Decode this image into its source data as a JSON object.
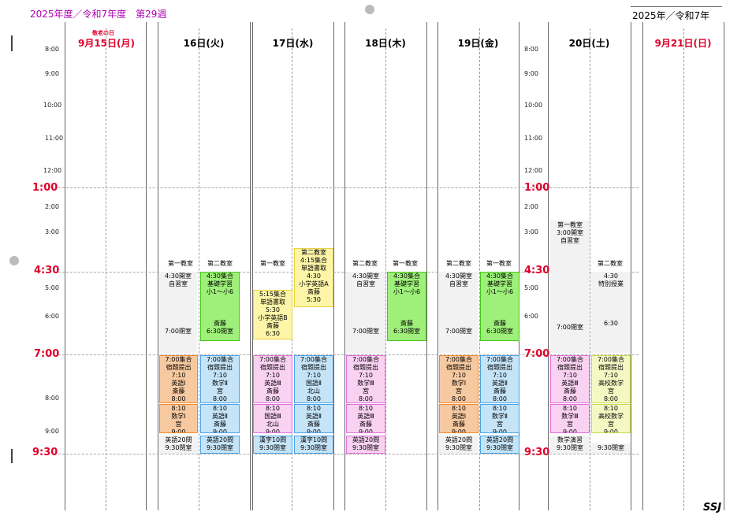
{
  "header": {
    "left": "2025年度／令和7年度　第29週",
    "right": "2025年／令和7年",
    "holiday": "敬老の日",
    "footer": "SSJ"
  },
  "colors": {
    "orange": "#f7c9a0",
    "blue": "#c6e4f8",
    "pink": "#f9d2f2",
    "green": "#9ef07a",
    "yellow": "#fdf5a8",
    "lightyellow": "#f4f9c4",
    "gray": "#f2f2f2",
    "red": "#e0002a"
  },
  "time_labels": [
    "8:00",
    "9:00",
    "10:00",
    "11:00",
    "12:00",
    "2:00",
    "3:00",
    "5:00",
    "6:00",
    "8:00",
    "9:00"
  ],
  "major_times": [
    "1:00",
    "4:30",
    "7:00",
    "9:30"
  ],
  "days": [
    {
      "label": "9月15日(月)",
      "red": true
    },
    {
      "label": "16日(火)"
    },
    {
      "label": "17日(水)"
    },
    {
      "label": "18日(木)"
    },
    {
      "label": "19日(金)"
    },
    {
      "label": "20日(土)"
    },
    {
      "label": "9月21日(日)",
      "red": true
    }
  ],
  "caps": [
    {
      "text": "第一教室"
    },
    {
      "text": "第二教室"
    },
    {
      "text": "第一教室"
    },
    {
      "text": "第二教室"
    },
    {
      "text": "第一教室"
    },
    {
      "text": "第二教室"
    },
    {
      "text": "第一教室"
    },
    {
      "text": "第二教室"
    },
    {
      "text": "第二教室"
    }
  ],
  "blocks": [
    {
      "c": "gray",
      "lines": [
        "4:30開室",
        "自習室",
        "",
        "",
        "",
        "",
        "",
        "7:00閉室"
      ]
    },
    {
      "c": "green",
      "lines": [
        "4:30集合",
        "基礎学習",
        "小1～小6",
        "",
        "",
        "",
        "斎藤",
        "6:30閉室"
      ]
    },
    {
      "c": "orange",
      "lines": [
        "7:00集合",
        "宿題提出",
        "7:10",
        "英語Ⅰ",
        "斎藤",
        "8:00"
      ]
    },
    {
      "c": "orange",
      "lines": [
        "8:10",
        "数学Ⅰ",
        "宮",
        "9:00"
      ]
    },
    {
      "c": "gray",
      "lines": [
        "英語20問",
        "9:30閉室"
      ]
    },
    {
      "c": "blue",
      "lines": [
        "7:00集合",
        "宿題提出",
        "7:10",
        "数学Ⅱ",
        "宮",
        "8:00"
      ]
    },
    {
      "c": "blue",
      "lines": [
        "8:10",
        "英語Ⅱ",
        "斎藤",
        "9:00"
      ]
    },
    {
      "c": "blue",
      "lines": [
        "英語20問",
        "9:30閉室"
      ]
    },
    {
      "c": "yellow",
      "lines": [
        "5:15集合",
        "単語書取",
        "5:30",
        "小学英語B",
        "斎藤",
        "6:30"
      ]
    },
    {
      "c": "yellow",
      "lines": [
        "第二教室",
        "4:15集合",
        "単語書取",
        "4:30",
        "小学英語A",
        "斎藤",
        "5:30"
      ]
    },
    {
      "c": "pink",
      "lines": [
        "7:00集合",
        "宿題提出",
        "7:10",
        "英語Ⅲ",
        "斎藤",
        "8:00"
      ]
    },
    {
      "c": "pink",
      "lines": [
        "8:10",
        "国語Ⅲ",
        "北山",
        "9:00"
      ]
    },
    {
      "c": "blue",
      "lines": [
        "漢字10問",
        "9:30閉室"
      ]
    },
    {
      "c": "blue",
      "lines": [
        "7:00集合",
        "宿題提出",
        "7:10",
        "国語Ⅱ",
        "北山",
        "8:00"
      ]
    },
    {
      "c": "blue",
      "lines": [
        "8:10",
        "英語Ⅱ",
        "斎藤",
        "9:00"
      ]
    },
    {
      "c": "blue",
      "lines": [
        "漢字10問",
        "9:30閉室"
      ]
    },
    {
      "c": "gray",
      "lines": [
        "4:30開室",
        "自習室",
        "",
        "",
        "",
        "",
        "",
        "7:00閉室"
      ]
    },
    {
      "c": "green",
      "lines": [
        "4:30集合",
        "基礎学習",
        "小1～小6",
        "",
        "",
        "",
        "斎藤",
        "6:30閉室"
      ]
    },
    {
      "c": "pink",
      "lines": [
        "7:00集合",
        "宿題提出",
        "7:10",
        "数学Ⅲ",
        "宮",
        "8:00"
      ]
    },
    {
      "c": "pink",
      "lines": [
        "8:10",
        "英語Ⅲ",
        "斎藤",
        "9:00"
      ]
    },
    {
      "c": "pink",
      "lines": [
        "英語20問",
        "9:30閉室"
      ]
    },
    {
      "c": "gray",
      "lines": [
        "4:30開室",
        "自習室",
        "",
        "",
        "",
        "",
        "",
        "7:00閉室"
      ]
    },
    {
      "c": "green",
      "lines": [
        "4:30集合",
        "基礎学習",
        "小1～小6",
        "",
        "",
        "",
        "斎藤",
        "6:30閉室"
      ]
    },
    {
      "c": "orange",
      "lines": [
        "7:00集合",
        "宿題提出",
        "7:10",
        "数学Ⅰ",
        "宮",
        "8:00"
      ]
    },
    {
      "c": "orange",
      "lines": [
        "8:10",
        "英語Ⅰ",
        "斎藤",
        "9:00"
      ]
    },
    {
      "c": "gray",
      "lines": [
        "英語20問",
        "9:30閉室"
      ]
    },
    {
      "c": "blue",
      "lines": [
        "7:00集合",
        "宿題提出",
        "7:10",
        "英語Ⅱ",
        "斎藤",
        "8:00"
      ]
    },
    {
      "c": "blue",
      "lines": [
        "8:10",
        "数学Ⅱ",
        "宮",
        "9:00"
      ]
    },
    {
      "c": "blue",
      "lines": [
        "英語20問",
        "9:30閉室"
      ]
    },
    {
      "c": "gray",
      "lines": [
        "第一教室",
        "3:00開室",
        "自習室",
        "",
        "",
        "",
        "",
        "",
        "",
        "",
        "",
        "",
        "",
        "7:00閉室"
      ]
    },
    {
      "c": "pink",
      "lines": [
        "7:00集合",
        "宿題提出",
        "7:10",
        "英語Ⅲ",
        "斎藤",
        "8:00"
      ]
    },
    {
      "c": "pink",
      "lines": [
        "8:10",
        "数学Ⅲ",
        "宮",
        "9:00"
      ]
    },
    {
      "c": "gray",
      "lines": [
        "数学演習",
        "9:30閉室"
      ]
    },
    {
      "c": "gray",
      "lines": [
        "4:30",
        "特別授業",
        "",
        "",
        "",
        "",
        "6:30"
      ]
    },
    {
      "c": "lightyellow",
      "lines": [
        "7:00集合",
        "宿題提出",
        "7:10",
        "高校数学",
        "宮",
        "8:00"
      ]
    },
    {
      "c": "lightyellow",
      "lines": [
        "8:10",
        "高校数学",
        "宮",
        "9:00"
      ]
    },
    {
      "c": "gray",
      "lines": [
        "9:30閉室"
      ]
    }
  ]
}
